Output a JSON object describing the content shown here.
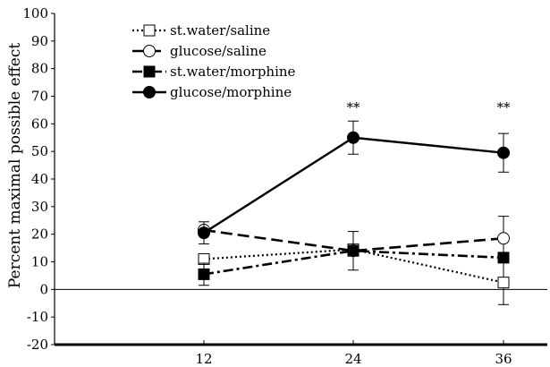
{
  "chart_data": {
    "type": "line",
    "ylabel": "Percent maximal possible effect",
    "xlabel": "",
    "x": [
      12,
      24,
      36
    ],
    "xticks": [
      "12",
      "24",
      "36"
    ],
    "ylim": [
      -20,
      100
    ],
    "yticks": [
      "-20",
      "-10",
      "0",
      "10",
      "20",
      "30",
      "40",
      "50",
      "60",
      "70",
      "80",
      "90",
      "100"
    ],
    "grid": false,
    "legend_position": "top-left",
    "significance": [
      {
        "x": 24,
        "label": "**"
      },
      {
        "x": 36,
        "label": "**"
      }
    ],
    "series": [
      {
        "name": "st.water/saline",
        "values": [
          11,
          14.5,
          2.5
        ],
        "error": [
          null,
          null,
          8
        ],
        "marker": "open-square",
        "line": "dotted"
      },
      {
        "name": "glucose/saline",
        "values": [
          21.5,
          14,
          18.5
        ],
        "error": [
          null,
          7,
          8
        ],
        "marker": "open-circle",
        "line": "dashed"
      },
      {
        "name": "st.water/morphine",
        "values": [
          5.5,
          14,
          11.5
        ],
        "error": [
          4,
          null,
          null
        ],
        "marker": "filled-square",
        "line": "dash-dot"
      },
      {
        "name": "glucose/morphine",
        "values": [
          20.5,
          55,
          49.5
        ],
        "error": [
          4,
          6,
          7
        ],
        "marker": "filled-circle",
        "line": "solid"
      }
    ]
  }
}
